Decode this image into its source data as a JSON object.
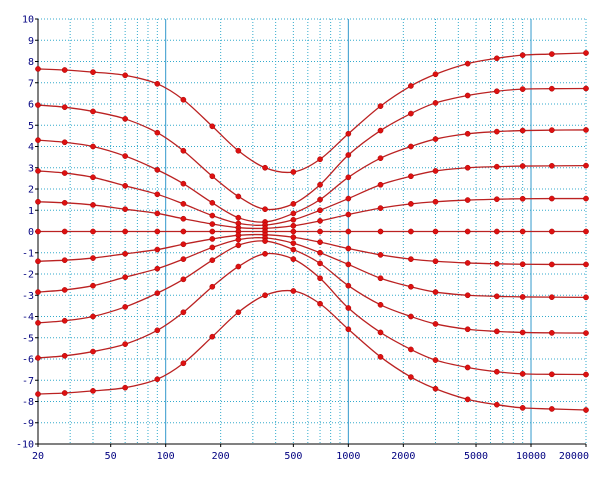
{
  "chart_data": {
    "type": "line",
    "title": "",
    "xlabel": "",
    "ylabel": "",
    "x_scale": "log",
    "xlim": [
      20,
      20000
    ],
    "ylim": [
      -10,
      10
    ],
    "grid": true,
    "legend": "none",
    "x_tick_labels": [
      {
        "value": 20,
        "label": "20"
      },
      {
        "value": 50,
        "label": "50"
      },
      {
        "value": 100,
        "label": "100"
      },
      {
        "value": 200,
        "label": "200"
      },
      {
        "value": 500,
        "label": "500"
      },
      {
        "value": 1000,
        "label": "1000"
      },
      {
        "value": 2000,
        "label": "2000"
      },
      {
        "value": 5000,
        "label": "5000"
      },
      {
        "value": 10000,
        "label": "10000"
      },
      {
        "value": 20000,
        "label": "20000"
      }
    ],
    "y_ticks": [
      10,
      9,
      8,
      7,
      6,
      5,
      4,
      3,
      2,
      1,
      0,
      -1,
      -2,
      -3,
      -4,
      -5,
      -6,
      -7,
      -8,
      -9,
      -10
    ],
    "x_grid_values": [
      20,
      30,
      40,
      50,
      60,
      70,
      80,
      90,
      100,
      200,
      300,
      400,
      500,
      600,
      700,
      800,
      900,
      1000,
      2000,
      3000,
      4000,
      5000,
      6000,
      7000,
      8000,
      9000,
      10000,
      20000
    ],
    "x": [
      20,
      28,
      40,
      60,
      90,
      125,
      180,
      250,
      350,
      500,
      700,
      1000,
      1500,
      2200,
      3000,
      4500,
      6500,
      9000,
      13000,
      20000
    ],
    "series": [
      {
        "values": [
          7.65,
          7.6,
          7.5,
          7.35,
          6.95,
          6.2,
          4.95,
          3.8,
          3.0,
          2.8,
          3.4,
          4.6,
          5.9,
          6.85,
          7.4,
          7.9,
          8.15,
          8.3,
          8.35,
          8.4
        ]
      },
      {
        "values": [
          5.95,
          5.85,
          5.65,
          5.3,
          4.65,
          3.8,
          2.6,
          1.65,
          1.05,
          1.3,
          2.2,
          3.6,
          4.75,
          5.55,
          6.05,
          6.4,
          6.6,
          6.7,
          6.72,
          6.73
        ]
      },
      {
        "values": [
          4.3,
          4.2,
          4.0,
          3.55,
          2.9,
          2.25,
          1.35,
          0.65,
          0.45,
          0.85,
          1.5,
          2.55,
          3.45,
          4.0,
          4.35,
          4.6,
          4.7,
          4.75,
          4.77,
          4.78
        ]
      },
      {
        "values": [
          2.85,
          2.75,
          2.55,
          2.15,
          1.75,
          1.3,
          0.75,
          0.38,
          0.3,
          0.55,
          1.0,
          1.55,
          2.2,
          2.6,
          2.85,
          3.0,
          3.05,
          3.08,
          3.09,
          3.1
        ]
      },
      {
        "values": [
          1.4,
          1.35,
          1.25,
          1.05,
          0.85,
          0.6,
          0.35,
          0.18,
          0.15,
          0.27,
          0.5,
          0.8,
          1.1,
          1.3,
          1.4,
          1.48,
          1.52,
          1.54,
          1.55,
          1.55
        ]
      },
      {
        "values": [
          0,
          0,
          0,
          0,
          0,
          0,
          0,
          0,
          0,
          0,
          0,
          0,
          0,
          0,
          0,
          0,
          0,
          0,
          0,
          0
        ]
      },
      {
        "values": [
          -1.4,
          -1.35,
          -1.25,
          -1.05,
          -0.85,
          -0.6,
          -0.35,
          -0.18,
          -0.15,
          -0.27,
          -0.5,
          -0.8,
          -1.1,
          -1.3,
          -1.4,
          -1.48,
          -1.52,
          -1.54,
          -1.55,
          -1.55
        ]
      },
      {
        "values": [
          -2.85,
          -2.75,
          -2.55,
          -2.15,
          -1.75,
          -1.3,
          -0.75,
          -0.38,
          -0.3,
          -0.55,
          -1.0,
          -1.55,
          -2.2,
          -2.6,
          -2.85,
          -3.0,
          -3.05,
          -3.08,
          -3.09,
          -3.1
        ]
      },
      {
        "values": [
          -4.3,
          -4.2,
          -4.0,
          -3.55,
          -2.9,
          -2.25,
          -1.35,
          -0.65,
          -0.45,
          -0.85,
          -1.5,
          -2.55,
          -3.45,
          -4.0,
          -4.35,
          -4.6,
          -4.7,
          -4.75,
          -4.77,
          -4.78
        ]
      },
      {
        "values": [
          -5.95,
          -5.85,
          -5.65,
          -5.3,
          -4.65,
          -3.8,
          -2.6,
          -1.65,
          -1.05,
          -1.3,
          -2.2,
          -3.6,
          -4.75,
          -5.55,
          -6.05,
          -6.4,
          -6.6,
          -6.7,
          -6.72,
          -6.73
        ]
      },
      {
        "values": [
          -7.65,
          -7.6,
          -7.5,
          -7.35,
          -6.95,
          -6.2,
          -4.95,
          -3.8,
          -3.0,
          -2.8,
          -3.4,
          -4.6,
          -5.9,
          -6.85,
          -7.4,
          -7.9,
          -8.15,
          -8.3,
          -8.35,
          -8.4
        ]
      }
    ],
    "colors": {
      "background": "#ffffff",
      "axis": "#000000",
      "grid_dotted": "#33aacc",
      "grid_decade": "#3399cc",
      "tick_label": "#000080",
      "series_line": "#bb2222",
      "marker": "#dd1111"
    }
  }
}
